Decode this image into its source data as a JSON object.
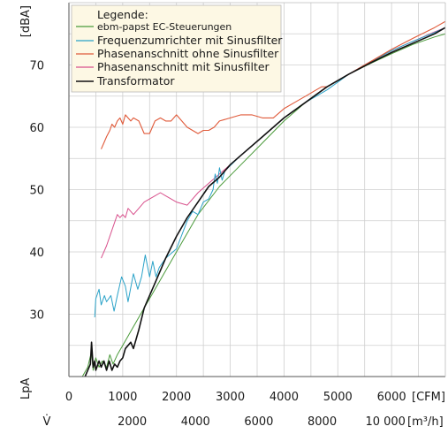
{
  "chart_data": {
    "type": "line",
    "title": "",
    "ylabel_top": "[dBA]",
    "ylabel_side": "LpA",
    "xlabel_primary_unit": "[CFM]",
    "xlabel_secondary_unit": "[m³/h]",
    "xlabel_secondary_symbol": "V̇",
    "xlim": [
      0,
      7000
    ],
    "ylim": [
      20,
      80
    ],
    "x_ticks": [
      "0",
      "1000",
      "2000",
      "3000",
      "4000",
      "5000",
      "6000"
    ],
    "x_tick_values": [
      0,
      1000,
      2000,
      3000,
      4000,
      5000,
      6000
    ],
    "y_ticks": [
      "30",
      "40",
      "50",
      "60",
      "70"
    ],
    "y_tick_values": [
      30,
      40,
      50,
      60,
      70
    ],
    "x2_ticks": [
      "2000",
      "4000",
      "6000",
      "8000",
      "10 000"
    ],
    "x2_tick_values_cfm": [
      1177,
      2354,
      3531,
      4709,
      5886
    ],
    "grid": true,
    "legend": {
      "title": "Legende:",
      "position": "top-left",
      "background": "#fdf8e4"
    },
    "series": [
      {
        "name": "ebm-papst EC-Steuerungen",
        "color": "#4a9a3a",
        "width": 1,
        "x": [
          250,
          350,
          420,
          450,
          500,
          560,
          620,
          700,
          760,
          820,
          900,
          1000,
          1200,
          1400,
          1600,
          2000,
          2400,
          2800,
          3200,
          3600,
          4000,
          4400,
          4800,
          5200,
          5600,
          6000,
          6400,
          6800,
          7000
        ],
        "y": [
          20,
          21.5,
          24,
          21,
          23,
          21.5,
          22.5,
          21.5,
          23.5,
          22,
          23.5,
          25,
          28,
          31,
          34,
          40,
          46,
          50.5,
          54,
          57.5,
          61,
          64,
          66.5,
          68.5,
          70.2,
          71.8,
          73.3,
          74.5,
          75
        ]
      },
      {
        "name": "Frequenzumrichter mit Sinusfilter",
        "color": "#2aa2c8",
        "width": 1,
        "x": [
          480,
          500,
          560,
          600,
          660,
          700,
          780,
          840,
          900,
          980,
          1050,
          1100,
          1200,
          1280,
          1350,
          1420,
          1500,
          1560,
          1620,
          1680,
          1800,
          2000,
          2200,
          2300,
          2400,
          2500,
          2600,
          2680,
          2720,
          2760,
          2800,
          2850,
          2900,
          3200,
          3600,
          4000,
          4400,
          4800,
          5200,
          5600,
          6000,
          6400,
          6800,
          7000
        ],
        "y": [
          29.5,
          32.5,
          34,
          31.5,
          33,
          32,
          33,
          30.5,
          33,
          36,
          34.5,
          32,
          36.5,
          34,
          36,
          39.5,
          36,
          38.5,
          36,
          37.5,
          39,
          40.5,
          45,
          46.5,
          46,
          48,
          48.5,
          50,
          52.5,
          51,
          53.5,
          51.5,
          53,
          55.5,
          58.5,
          61.5,
          64,
          66,
          68.5,
          70.5,
          72.3,
          73.8,
          75.2,
          76
        ]
      },
      {
        "name": "Phasenanschnitt ohne Sinusfilter",
        "color": "#e05a3a",
        "width": 1.1,
        "x": [
          600,
          650,
          700,
          760,
          800,
          850,
          900,
          950,
          1000,
          1050,
          1100,
          1150,
          1200,
          1300,
          1400,
          1500,
          1600,
          1700,
          1800,
          1900,
          2000,
          2200,
          2400,
          2500,
          2600,
          2700,
          2800,
          3000,
          3200,
          3400,
          3600,
          3800,
          4000,
          4200,
          4400,
          4600,
          4700,
          4800,
          4900,
          5000,
          5200,
          5400,
          5600,
          6000,
          6400,
          6800,
          7000
        ],
        "y": [
          56.5,
          57.5,
          58.5,
          59.5,
          60.5,
          60,
          61,
          61.5,
          60.5,
          62,
          61.5,
          61,
          61.5,
          61,
          59,
          59,
          61,
          61.5,
          61,
          61,
          62,
          60,
          59,
          59.5,
          59.5,
          60,
          61,
          61.5,
          62,
          62,
          61.5,
          61.5,
          63,
          64,
          65,
          66,
          66.5,
          66.5,
          67,
          67.5,
          68.5,
          69.5,
          70.5,
          72.5,
          74.3,
          76,
          77
        ]
      },
      {
        "name": "Phasenanschnitt mit Sinusfilter",
        "color": "#d8508c",
        "width": 1,
        "x": [
          600,
          700,
          800,
          900,
          950,
          1000,
          1050,
          1100,
          1150,
          1200,
          1300,
          1400,
          1600,
          1700,
          1800,
          2000,
          2200,
          2400,
          2600,
          2800,
          3000,
          3200,
          3600,
          4000,
          4400,
          4800,
          5200,
          5600,
          6000,
          6400,
          6800,
          7000
        ],
        "y": [
          39,
          41,
          43.5,
          46,
          45.5,
          46,
          45.5,
          47,
          46.5,
          46,
          47,
          48,
          49,
          49.5,
          49,
          48,
          47.5,
          49.5,
          51,
          52.5,
          54,
          55.5,
          58.5,
          61.5,
          64,
          66.5,
          68.5,
          70.5,
          72.3,
          73.8,
          75.3,
          76
        ]
      },
      {
        "name": "Transformator",
        "color": "#111111",
        "width": 1.6,
        "x": [
          300,
          400,
          420,
          450,
          480,
          500,
          560,
          600,
          650,
          700,
          750,
          800,
          850,
          900,
          950,
          1000,
          1050,
          1100,
          1150,
          1200,
          1300,
          1400,
          1600,
          1800,
          2000,
          2200,
          2400,
          2600,
          2800,
          3000,
          3200,
          3600,
          4000,
          4400,
          4800,
          5200,
          5600,
          6000,
          6400,
          6800,
          7000
        ],
        "y": [
          20,
          22,
          25.5,
          21.5,
          22.5,
          21,
          22.5,
          21.5,
          22.5,
          21,
          22.5,
          21,
          22,
          21.5,
          22.5,
          23,
          24.5,
          25,
          25.5,
          24.5,
          27.5,
          31,
          35,
          39,
          42.5,
          45.5,
          48,
          50.5,
          52,
          54,
          55.5,
          58.5,
          61.5,
          64,
          66.5,
          68.5,
          70.3,
          72,
          73.5,
          75,
          76
        ]
      }
    ]
  }
}
